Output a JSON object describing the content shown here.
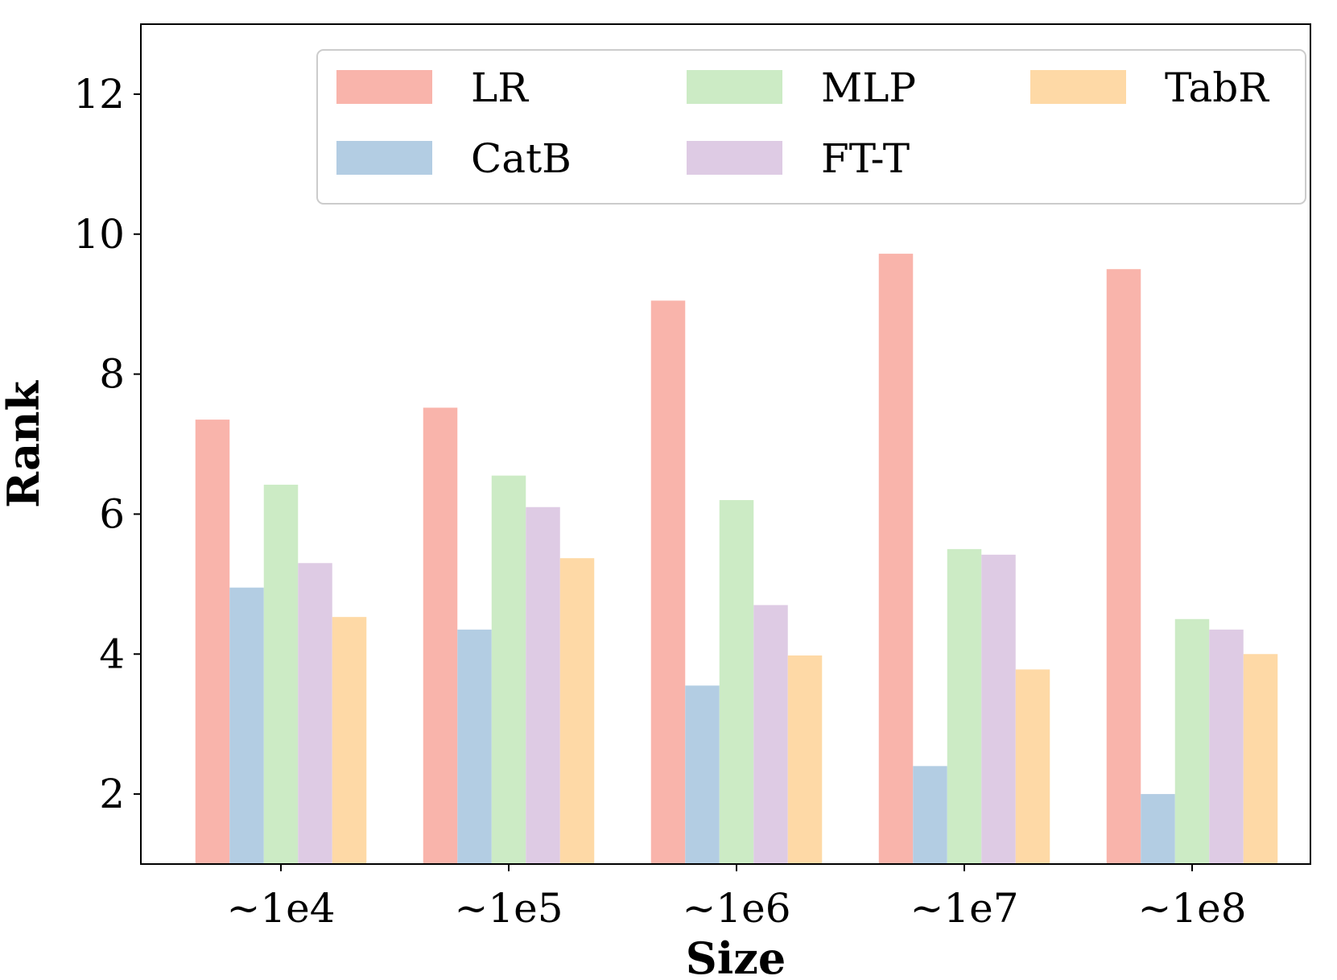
{
  "chart_data": {
    "type": "bar",
    "title": "",
    "xlabel": "Size",
    "ylabel": "Rank",
    "categories": [
      "~1e4",
      "~1e5",
      "~1e6",
      "~1e7",
      "~1e8"
    ],
    "ylim": [
      1,
      13
    ],
    "yticks": [
      2,
      4,
      6,
      8,
      10,
      12
    ],
    "grid": false,
    "legend": {
      "position": "top",
      "columns": 3
    },
    "series": [
      {
        "name": "LR",
        "color": "#f9b4ab",
        "values": [
          7.35,
          7.52,
          9.05,
          9.72,
          9.5
        ]
      },
      {
        "name": "CatB",
        "color": "#b3cde3",
        "values": [
          4.95,
          4.35,
          3.55,
          2.4,
          2.0
        ]
      },
      {
        "name": "MLP",
        "color": "#ccebc5",
        "values": [
          6.42,
          6.55,
          6.2,
          5.5,
          4.5
        ]
      },
      {
        "name": "FT-T",
        "color": "#decbe4",
        "values": [
          5.3,
          6.1,
          4.7,
          5.42,
          4.35
        ]
      },
      {
        "name": "TabR",
        "color": "#fed9a6",
        "values": [
          4.53,
          5.37,
          3.98,
          3.78,
          4.0
        ]
      }
    ]
  }
}
